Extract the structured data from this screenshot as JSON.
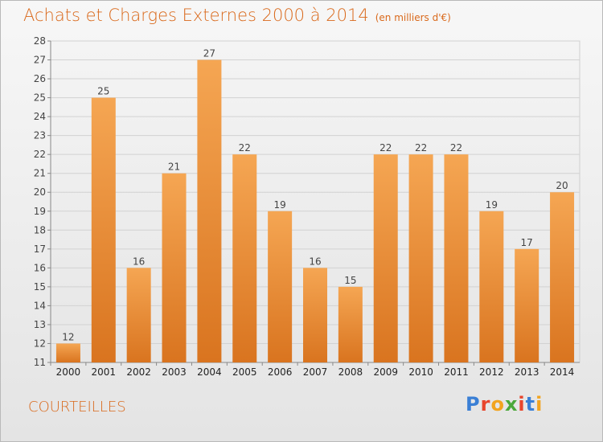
{
  "title": "Achats et Charges Externes 2000 à 2014",
  "subtitle": "(en milliers d'€)",
  "city": "COURTEILLES",
  "logo": {
    "text": "Proxiti",
    "colors": [
      "#3a7fd5",
      "#e8452c",
      "#f2a41f",
      "#4aa83a",
      "#e8452c",
      "#3a7fd5",
      "#f2a41f"
    ]
  },
  "colors": {
    "bar_top": "#f5a653",
    "bar_bottom": "#d9741f",
    "accent": "#d9681a"
  },
  "chart_data": {
    "type": "bar",
    "title": "Achats et Charges Externes 2000 à 2014",
    "subtitle": "(en milliers d'€)",
    "categories": [
      "2000",
      "2001",
      "2002",
      "2003",
      "2004",
      "2005",
      "2006",
      "2007",
      "2008",
      "2009",
      "2010",
      "2011",
      "2012",
      "2013",
      "2014"
    ],
    "values": [
      12,
      25,
      16,
      21,
      27,
      22,
      19,
      16,
      15,
      22,
      22,
      22,
      19,
      17,
      20
    ],
    "ylim": [
      11,
      28
    ],
    "yticks": [
      11,
      12,
      13,
      14,
      15,
      16,
      17,
      18,
      19,
      20,
      21,
      22,
      23,
      24,
      25,
      26,
      27,
      28
    ],
    "grid": true,
    "xlabel": "",
    "ylabel": ""
  }
}
